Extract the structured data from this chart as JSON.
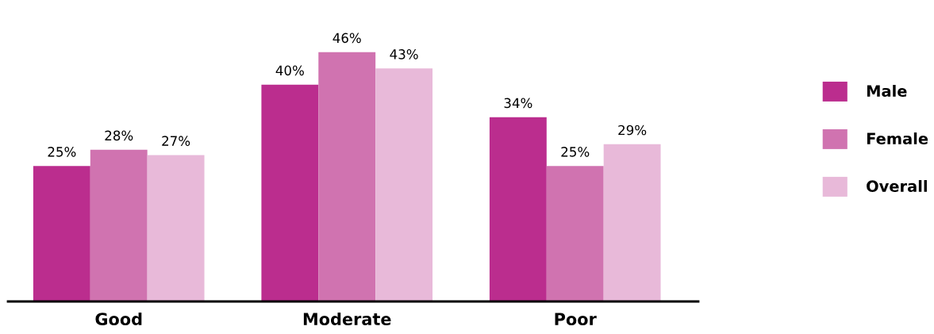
{
  "chart_data": {
    "type": "bar",
    "categories": [
      "Good",
      "Moderate",
      "Poor"
    ],
    "series": [
      {
        "name": "Male",
        "color": "#bb2d8e",
        "values": [
          25,
          40,
          34
        ],
        "value_labels": [
          "25%",
          "40%",
          "34%"
        ]
      },
      {
        "name": "Female",
        "color": "#d073b0",
        "values": [
          28,
          46,
          25
        ],
        "value_labels": [
          "28%",
          "46%",
          "25%"
        ]
      },
      {
        "name": "Overall",
        "color": "#e8b9d9",
        "values": [
          27,
          43,
          29
        ],
        "value_labels": [
          "27%",
          "43%",
          "29%"
        ]
      }
    ],
    "tick_labels": "x",
    "legend": "right",
    "grid": false
  }
}
